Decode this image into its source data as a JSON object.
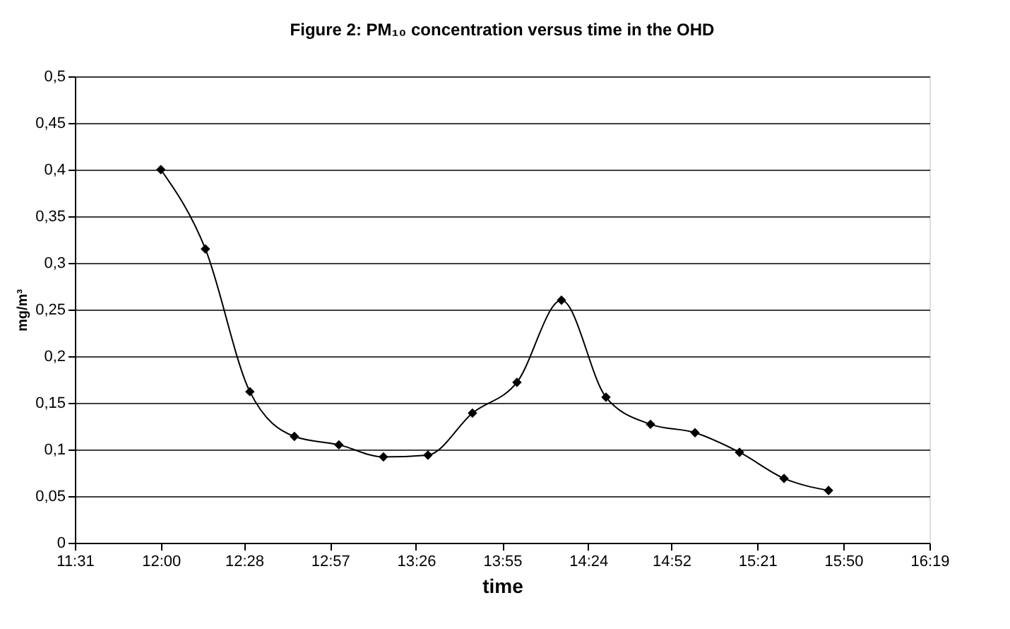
{
  "chart_data": {
    "type": "line",
    "title": "Figure 2: PM₁₀ concentration versus time in the OHD",
    "xlabel": "time",
    "ylabel": "mg/m³",
    "x": [
      12.0,
      12.25,
      12.5,
      12.75,
      13.0,
      13.25,
      13.5,
      13.75,
      14.0,
      14.25,
      14.5,
      14.75,
      15.0,
      15.25,
      15.5,
      15.75
    ],
    "series": [
      {
        "color": "#000000",
        "values": [
          0.4,
          0.315,
          0.162,
          0.114,
          0.105,
          0.092,
          0.094,
          0.139,
          0.172,
          0.26,
          0.156,
          0.127,
          0.118,
          0.097,
          0.069,
          0.056
        ]
      }
    ],
    "xlim": [
      11.517,
      16.317
    ],
    "xticks": [
      {
        "value": 11.517,
        "label": "11:31"
      },
      {
        "value": 12.0,
        "label": "12:00"
      },
      {
        "value": 12.467,
        "label": "12:28"
      },
      {
        "value": 12.95,
        "label": "12:57"
      },
      {
        "value": 13.433,
        "label": "13:26"
      },
      {
        "value": 13.917,
        "label": "13:55"
      },
      {
        "value": 14.4,
        "label": "14:24"
      },
      {
        "value": 14.867,
        "label": "14:52"
      },
      {
        "value": 15.35,
        "label": "15:21"
      },
      {
        "value": 15.833,
        "label": "15:50"
      },
      {
        "value": 16.317,
        "label": "16:19"
      }
    ],
    "ylim": [
      0,
      0.5
    ],
    "yticks": [
      0,
      {
        "value": 0.05,
        "label": "0,05"
      },
      {
        "value": 0.1,
        "label": "0,1"
      },
      {
        "value": 0.15,
        "label": "0,15"
      },
      {
        "value": 0.2,
        "label": "0,2"
      },
      {
        "value": 0.25,
        "label": "0,25"
      },
      {
        "value": 0.3,
        "label": "0,3"
      },
      {
        "value": 0.35,
        "label": "0,35"
      },
      {
        "value": 0.4,
        "label": "0,4"
      },
      {
        "value": 0.45,
        "label": "0,45"
      },
      {
        "value": 0.5,
        "label": "0,5"
      }
    ],
    "grid": "y",
    "marker": "diamond",
    "line_style": "solid"
  }
}
